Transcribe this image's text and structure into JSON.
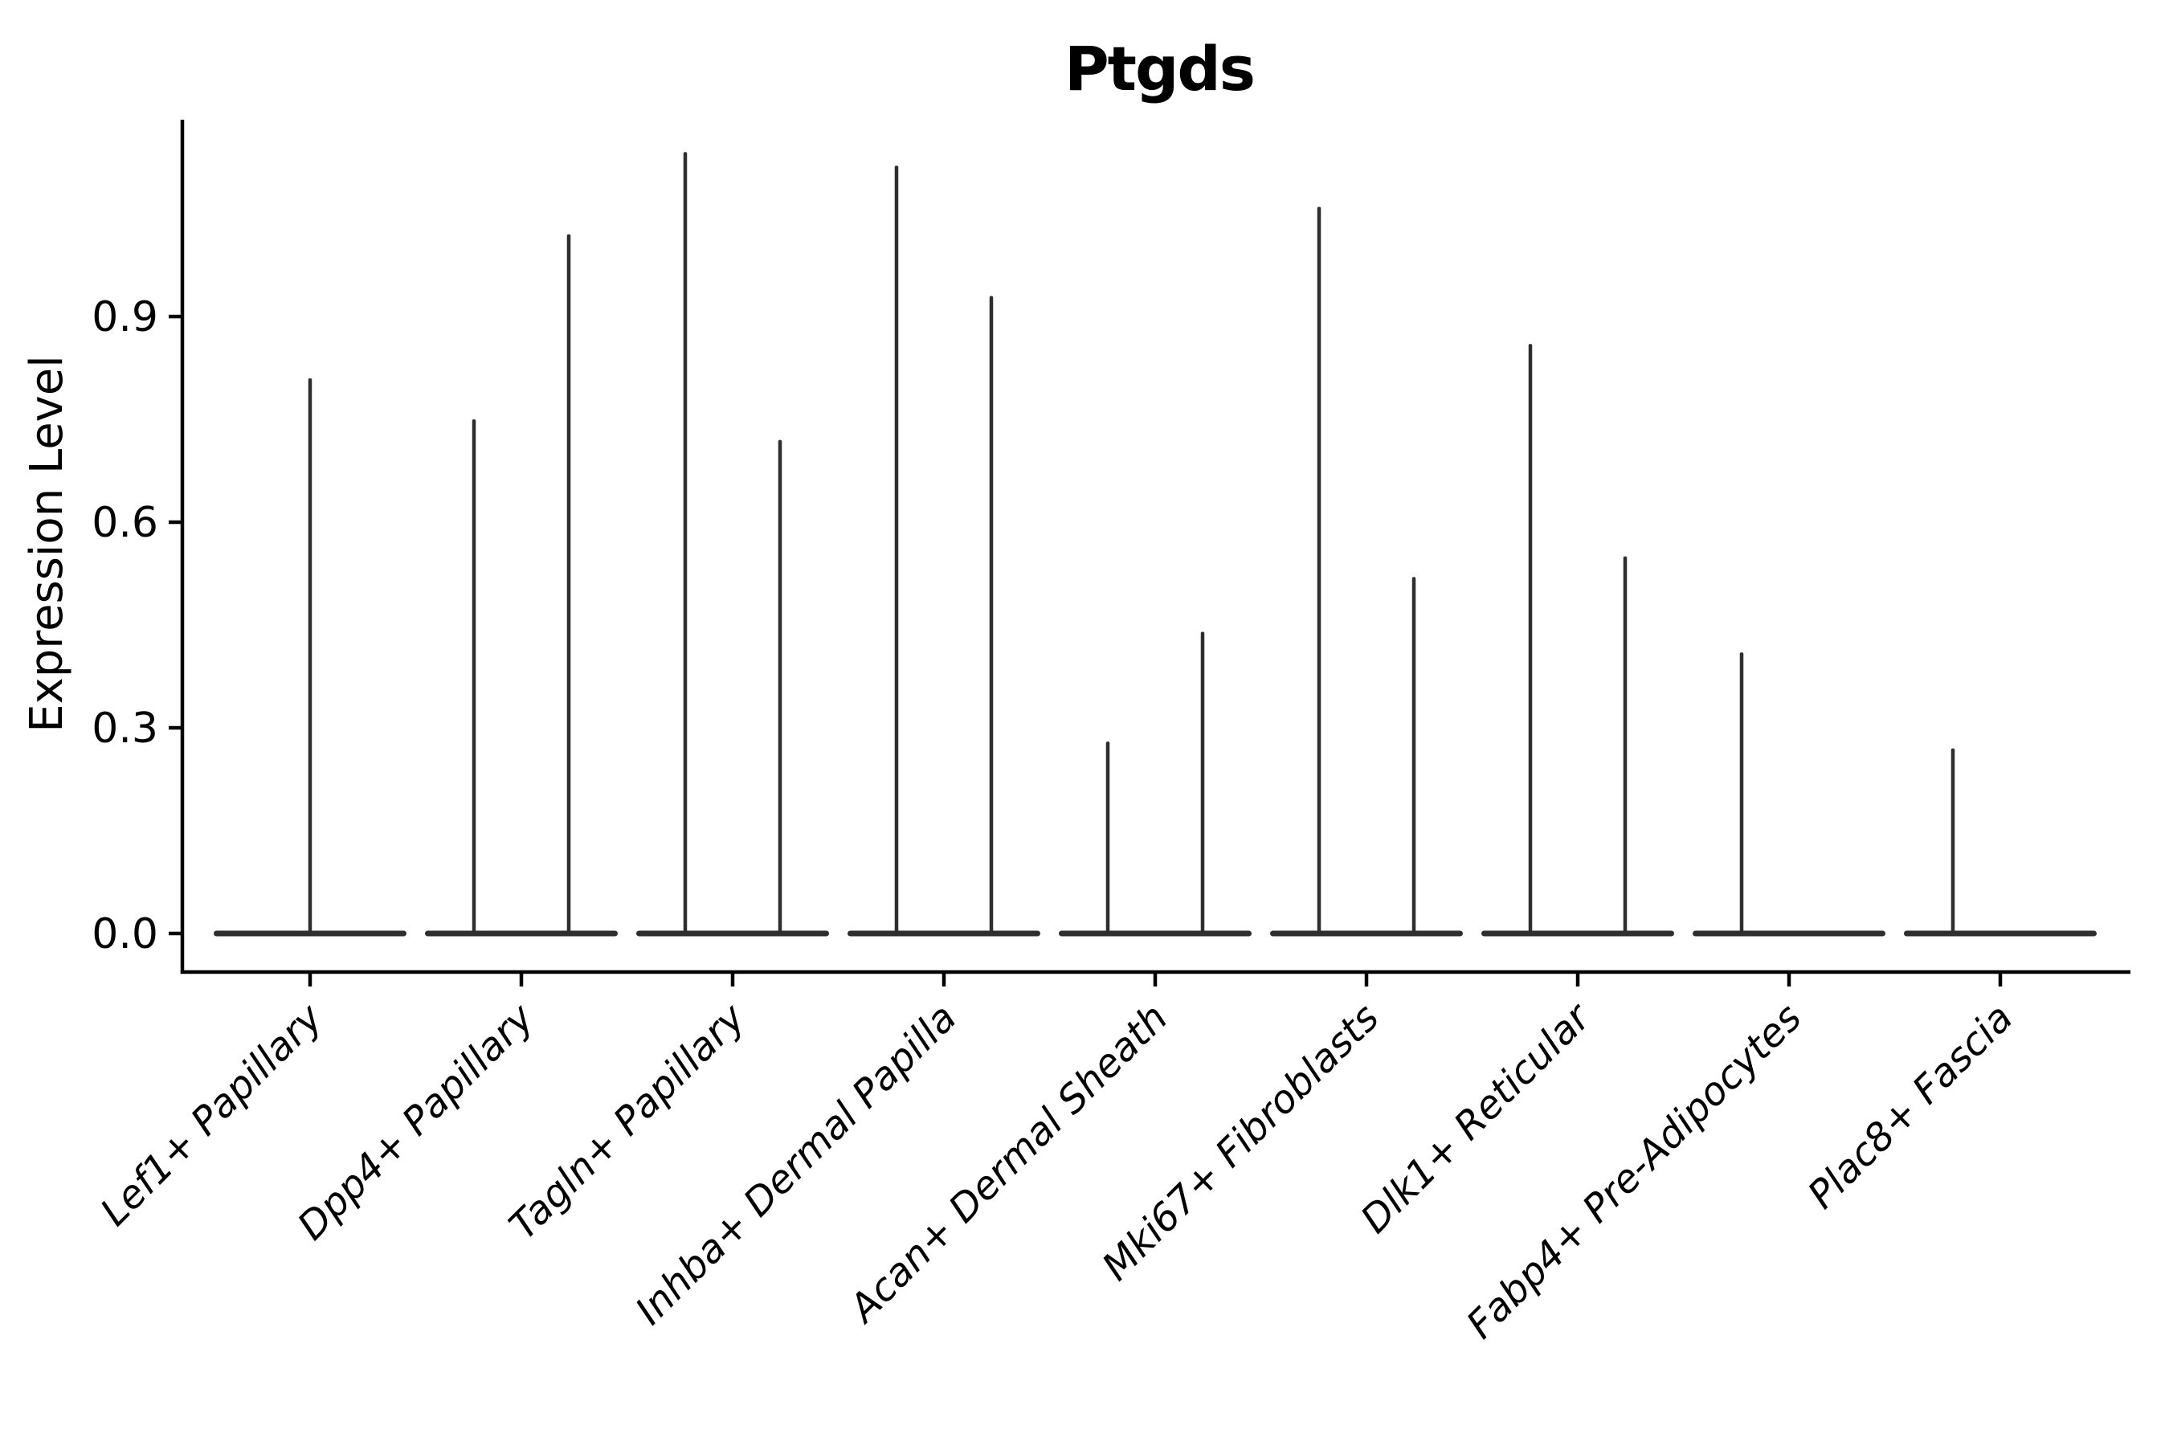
{
  "chart_data": {
    "type": "violin",
    "title": "Ptgds",
    "ylabel": "Expression Level",
    "xlabel": "",
    "ylim": [
      0,
      1.19
    ],
    "yticks": [
      "0.0",
      "0.3",
      "0.6",
      "0.9"
    ],
    "x_tick_angle_deg": 45,
    "x_tick_style": "italic",
    "grid": false,
    "legend_position": "none",
    "categories": [
      {
        "label": "Lef1+ Papillary",
        "violins": [
          {
            "position": "center",
            "max": 0.81
          }
        ]
      },
      {
        "label": "Dpp4+ Papillary",
        "violins": [
          {
            "position": "left",
            "max": 0.75
          },
          {
            "position": "right",
            "max": 1.02
          }
        ]
      },
      {
        "label": "Tagln+ Papillary",
        "violins": [
          {
            "position": "left",
            "max": 1.14
          },
          {
            "position": "right",
            "max": 0.72
          }
        ]
      },
      {
        "label": "Inhba+ Dermal Papilla",
        "violins": [
          {
            "position": "left",
            "max": 1.12
          },
          {
            "position": "right",
            "max": 0.93
          }
        ]
      },
      {
        "label": "Acan+ Dermal Sheath",
        "violins": [
          {
            "position": "left",
            "max": 0.28
          },
          {
            "position": "right",
            "max": 0.44
          }
        ]
      },
      {
        "label": "Mki67+ Fibroblasts",
        "violins": [
          {
            "position": "left",
            "max": 1.06
          },
          {
            "position": "right",
            "max": 0.52
          }
        ]
      },
      {
        "label": "Dlk1+ Reticular",
        "violins": [
          {
            "position": "left",
            "max": 0.86
          },
          {
            "position": "right",
            "max": 0.55
          }
        ]
      },
      {
        "label": "Fabp4+ Pre-Adipocytes",
        "violins": [
          {
            "position": "left",
            "max": 0.41
          },
          {
            "position": "right",
            "max": 0.0
          }
        ]
      },
      {
        "label": "Plac8+ Fascia",
        "violins": [
          {
            "position": "left",
            "max": 0.27
          },
          {
            "position": "right",
            "max": 0.0
          }
        ]
      }
    ],
    "colors": {
      "violin": "#2e2e2e",
      "axis": "#000000",
      "text": "#000000"
    }
  }
}
